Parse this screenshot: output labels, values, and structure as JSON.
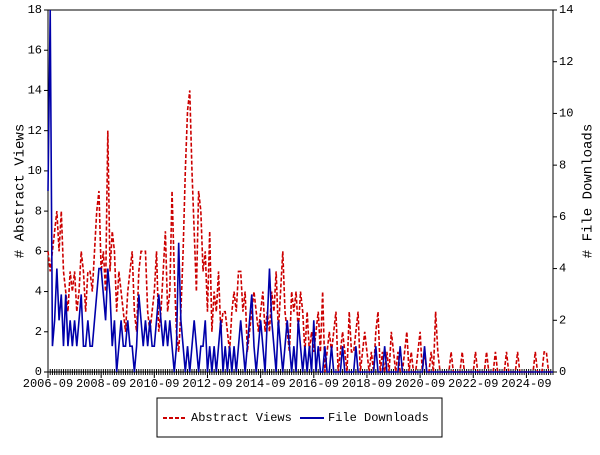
{
  "chart_data": {
    "type": "line",
    "x_label": null,
    "y_label": "# Abstract Views",
    "y2_label": "# File Downloads",
    "x": [
      "2006-09",
      "2006-10",
      "2006-11",
      "2006-12",
      "2007-01",
      "2007-02",
      "2007-03",
      "2007-04",
      "2007-05",
      "2007-06",
      "2007-07",
      "2007-08",
      "2007-09",
      "2007-10",
      "2007-11",
      "2007-12",
      "2008-01",
      "2008-02",
      "2008-03",
      "2008-04",
      "2008-05",
      "2008-06",
      "2008-07",
      "2008-08",
      "2008-09",
      "2008-10",
      "2008-11",
      "2008-12",
      "2009-01",
      "2009-02",
      "2009-03",
      "2009-04",
      "2009-05",
      "2009-06",
      "2009-07",
      "2009-08",
      "2009-09",
      "2009-10",
      "2009-11",
      "2009-12",
      "2010-01",
      "2010-02",
      "2010-03",
      "2010-04",
      "2010-05",
      "2010-06",
      "2010-07",
      "2010-08",
      "2010-09",
      "2010-10",
      "2010-11",
      "2010-12",
      "2011-01",
      "2011-02",
      "2011-03",
      "2011-04",
      "2011-05",
      "2011-06",
      "2011-07",
      "2011-08",
      "2011-09",
      "2011-10",
      "2011-11",
      "2011-12",
      "2012-01",
      "2012-02",
      "2012-03",
      "2012-04",
      "2012-05",
      "2012-06",
      "2012-07",
      "2012-08",
      "2012-09",
      "2012-10",
      "2012-11",
      "2012-12",
      "2013-01",
      "2013-02",
      "2013-03",
      "2013-04",
      "2013-05",
      "2013-06",
      "2013-07",
      "2013-08",
      "2013-09",
      "2013-10",
      "2013-11",
      "2013-12",
      "2014-01",
      "2014-02",
      "2014-03",
      "2014-04",
      "2014-05",
      "2014-06",
      "2014-07",
      "2014-08",
      "2014-09",
      "2014-10",
      "2014-11",
      "2014-12",
      "2015-01",
      "2015-02",
      "2015-03",
      "2015-04",
      "2015-05",
      "2015-06",
      "2015-07",
      "2015-08",
      "2015-09",
      "2015-10",
      "2015-11",
      "2015-12",
      "2016-01",
      "2016-02",
      "2016-03",
      "2016-04",
      "2016-05",
      "2016-06",
      "2016-07",
      "2016-08",
      "2016-09",
      "2016-10",
      "2016-11",
      "2016-12",
      "2017-01",
      "2017-02",
      "2017-03",
      "2017-04",
      "2017-05",
      "2017-06",
      "2017-07",
      "2017-08",
      "2017-09",
      "2017-10",
      "2017-11",
      "2017-12",
      "2018-01",
      "2018-02",
      "2018-03",
      "2018-04",
      "2018-05",
      "2018-06",
      "2018-07",
      "2018-08",
      "2018-09",
      "2018-10",
      "2018-11",
      "2018-12",
      "2019-01",
      "2019-02",
      "2019-03",
      "2019-04",
      "2019-05",
      "2019-06",
      "2019-07",
      "2019-08",
      "2019-09",
      "2019-10",
      "2019-11",
      "2019-12",
      "2020-01",
      "2020-02",
      "2020-03",
      "2020-04",
      "2020-05",
      "2020-06",
      "2020-07",
      "2020-08",
      "2020-09",
      "2020-10",
      "2020-11",
      "2020-12",
      "2021-01",
      "2021-02",
      "2021-03",
      "2021-04",
      "2021-05",
      "2021-06",
      "2021-07",
      "2021-08",
      "2021-09",
      "2021-10",
      "2021-11",
      "2021-12",
      "2022-01",
      "2022-02",
      "2022-03",
      "2022-04",
      "2022-05",
      "2022-06",
      "2022-07",
      "2022-08",
      "2022-09",
      "2022-10",
      "2022-11",
      "2022-12",
      "2023-01",
      "2023-02",
      "2023-03",
      "2023-04",
      "2023-05",
      "2023-06",
      "2023-07",
      "2023-08",
      "2023-09",
      "2023-10",
      "2023-11",
      "2023-12",
      "2024-01",
      "2024-02",
      "2024-03",
      "2024-04",
      "2024-05",
      "2024-06",
      "2024-07",
      "2024-08",
      "2024-09",
      "2024-10",
      "2024-11",
      "2024-12",
      "2025-01",
      "2025-02",
      "2025-03",
      "2025-04",
      "2025-05",
      "2025-06",
      "2025-07",
      "2025-08",
      "2025-09"
    ],
    "xticks": [
      "2006-09",
      "2008-09",
      "2010-09",
      "2012-09",
      "2014-09",
      "2016-09",
      "2018-09",
      "2020-09",
      "2022-09",
      "2024-09"
    ],
    "ylim": [
      0,
      18
    ],
    "yticks": [
      0,
      2,
      4,
      6,
      8,
      10,
      12,
      14,
      16,
      18
    ],
    "y2lim": [
      0,
      14
    ],
    "y2ticks": [
      0,
      2,
      4,
      6,
      8,
      10,
      12,
      14
    ],
    "series": [
      {
        "name": "Abstract Views",
        "color": "#cc0000",
        "dash": true,
        "values": [
          6,
          5,
          6,
          7,
          8,
          6,
          8,
          5,
          4,
          3,
          5,
          4,
          5,
          3,
          4,
          6,
          5,
          3,
          5,
          5,
          4,
          6,
          8,
          9,
          5,
          6,
          4,
          12,
          5,
          7,
          6,
          3,
          5,
          4,
          3,
          2,
          4,
          5,
          6,
          3,
          2,
          5,
          6,
          6,
          6,
          3,
          2,
          3,
          4,
          6,
          2,
          3,
          5,
          7,
          3,
          4,
          9,
          5,
          2,
          1,
          3,
          6,
          10,
          13,
          14,
          10,
          7,
          4,
          9,
          8,
          5,
          6,
          3,
          7,
          2,
          4,
          3,
          5,
          2,
          3,
          3,
          2,
          1,
          3,
          4,
          3,
          5,
          5,
          3,
          4,
          1,
          2,
          3,
          4,
          3,
          2,
          3,
          4,
          2,
          3,
          2,
          4,
          3,
          5,
          2,
          4,
          6,
          3,
          2,
          1,
          4,
          3,
          4,
          2,
          4,
          3,
          1,
          3,
          1,
          2,
          1,
          2,
          3,
          1,
          4,
          0,
          1,
          2,
          1,
          2,
          3,
          0,
          1,
          2,
          1,
          0,
          3,
          1,
          1,
          2,
          3,
          0,
          1,
          2,
          1,
          0,
          1,
          0,
          2,
          3,
          0,
          1,
          0,
          1,
          0,
          2,
          1,
          0,
          1,
          0,
          0,
          1,
          2,
          0,
          1,
          0,
          0,
          1,
          2,
          0,
          1,
          0,
          0,
          1,
          0,
          3,
          1,
          0,
          0,
          0,
          0,
          0,
          1,
          0,
          0,
          0,
          0,
          1,
          0,
          0,
          0,
          0,
          0,
          1,
          0,
          0,
          0,
          0,
          1,
          0,
          0,
          0,
          1,
          0,
          0,
          0,
          0,
          1,
          0,
          0,
          0,
          0,
          1,
          0,
          0,
          0,
          0,
          0,
          0,
          0,
          1,
          0,
          0,
          0,
          1,
          1,
          0,
          0,
          0
        ]
      },
      {
        "name": "File Downloads",
        "color": "#0000aa",
        "axis": "y2",
        "values": [
          7,
          14,
          1,
          2,
          4,
          2,
          3,
          1,
          3,
          1,
          2,
          1,
          2,
          1,
          2,
          3,
          1,
          1,
          2,
          1,
          1,
          2,
          3,
          4,
          4,
          3,
          2,
          4,
          3,
          1,
          2,
          0,
          1,
          2,
          1,
          1,
          2,
          1,
          1,
          0,
          1,
          3,
          2,
          1,
          2,
          1,
          2,
          1,
          1,
          2,
          3,
          2,
          1,
          2,
          1,
          2,
          1,
          0,
          1,
          5,
          2,
          1,
          0,
          1,
          0,
          1,
          2,
          1,
          0,
          1,
          1,
          2,
          0,
          1,
          0,
          1,
          0,
          1,
          2,
          0,
          1,
          0,
          1,
          0,
          1,
          0,
          1,
          2,
          1,
          0,
          1,
          2,
          3,
          1,
          0,
          1,
          2,
          1,
          0,
          2,
          4,
          2,
          1,
          0,
          2,
          1,
          0,
          1,
          2,
          1,
          0,
          1,
          0,
          2,
          1,
          0,
          1,
          0,
          1,
          0,
          2,
          0,
          1,
          0,
          0,
          1,
          0,
          0,
          1,
          0,
          0,
          0,
          0,
          1,
          0,
          0,
          0,
          0,
          0,
          1,
          0,
          0,
          0,
          0,
          0,
          0,
          0,
          0,
          1,
          0,
          0,
          0,
          1,
          0,
          0,
          0,
          0,
          0,
          0,
          1,
          0,
          0,
          0,
          0,
          0,
          0,
          0,
          0,
          0,
          0,
          1,
          0,
          0,
          0,
          0,
          0,
          0,
          0,
          0,
          0,
          0,
          0,
          0,
          0,
          0,
          0,
          0,
          0,
          0,
          0,
          0,
          0,
          0,
          0,
          0,
          0,
          0,
          0,
          0,
          0,
          0,
          0,
          0,
          0,
          0,
          0,
          0,
          0,
          0,
          0,
          0,
          0,
          0,
          0,
          0,
          0,
          0,
          0,
          0,
          0,
          0,
          0,
          0,
          0,
          0,
          0,
          0,
          0,
          0
        ]
      }
    ],
    "legend": "bottom"
  }
}
